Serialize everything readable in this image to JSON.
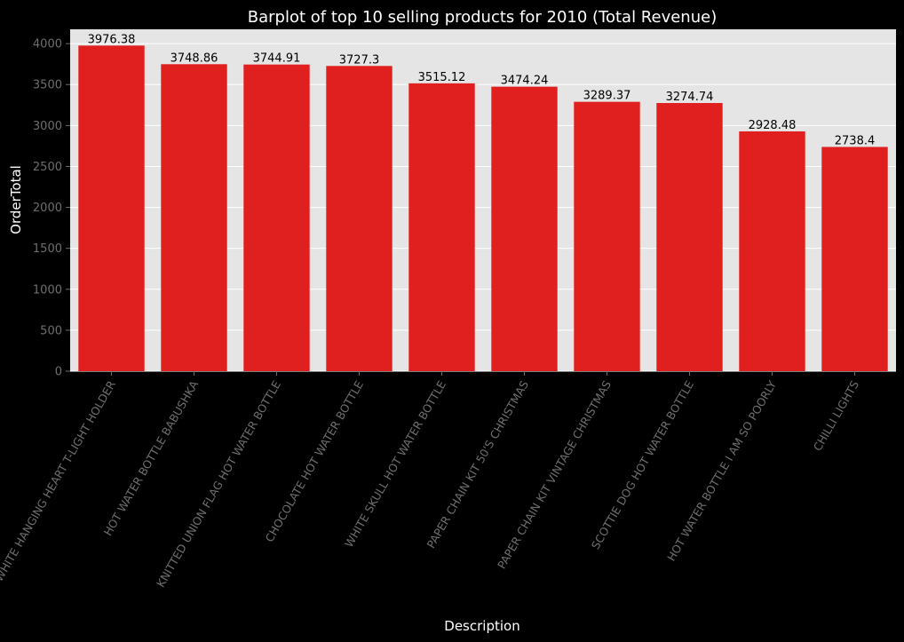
{
  "chart_data": {
    "type": "bar",
    "title": "Barplot of top 10 selling products for 2010 (Total Revenue)",
    "xlabel": "Description",
    "ylabel": "OrderTotal",
    "categories": [
      "WHITE HANGING HEART T-LIGHT HOLDER",
      "HOT WATER BOTTLE BABUSHKA",
      "KNITTED UNION FLAG HOT WATER BOTTLE",
      "CHOCOLATE HOT WATER BOTTLE",
      "WHITE SKULL HOT WATER BOTTLE",
      "PAPER CHAIN KIT 50'S CHRISTMAS",
      "PAPER CHAIN KIT VINTAGE CHRISTMAS",
      "SCOTTIE DOG HOT WATER BOTTLE",
      "HOT WATER BOTTLE I AM SO POORLY",
      "CHILLI LIGHTS"
    ],
    "values": [
      3976.38,
      3748.86,
      3744.91,
      3727.3,
      3515.12,
      3474.24,
      3289.37,
      3274.74,
      2928.48,
      2738.4
    ],
    "value_labels": [
      "3976.38",
      "3748.86",
      "3744.91",
      "3727.3",
      "3515.12",
      "3474.24",
      "3289.37",
      "3274.74",
      "2928.48",
      "2738.4"
    ],
    "ylim": [
      0,
      4175
    ],
    "yticks": [
      0,
      500,
      1000,
      1500,
      2000,
      2500,
      3000,
      3500,
      4000
    ],
    "grid": true,
    "colors": {
      "background": "#000000",
      "plot_area": "#e5e5e5",
      "bar": "#e01f1f",
      "grid": "#ffffff",
      "title": "#ffffff",
      "tick_label": "#6e6e6e",
      "data_label": "#000000"
    }
  }
}
